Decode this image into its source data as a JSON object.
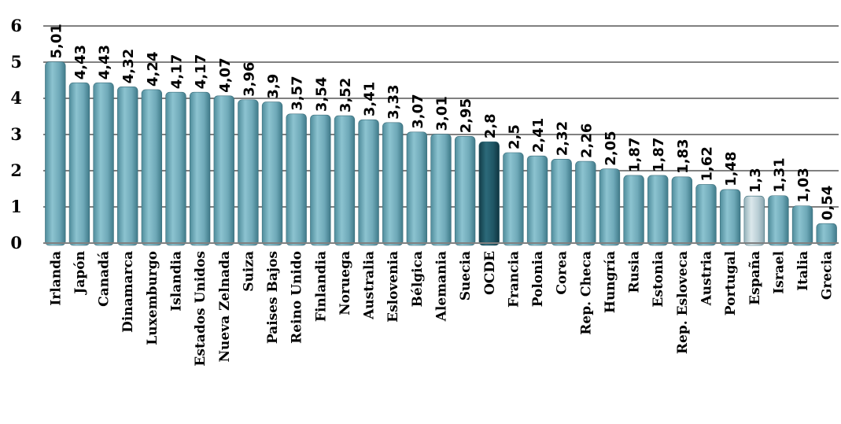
{
  "chart_data": {
    "type": "bar",
    "categories": [
      "Irlanda",
      "Japón",
      "Canadá",
      "Dinamarca",
      "Luxemburgo",
      "Islandia",
      "Estados Unidos",
      "Nueva Zelnada",
      "Suiza",
      "Paises Bajos",
      "Reino Unido",
      "Finlandia",
      "Noruega",
      "Australia",
      "Eslovenia",
      "Bélgica",
      "Alemania",
      "Suecia",
      "OCDE",
      "Francia",
      "Polonia",
      "Corea",
      "Rep. Checa",
      "Hungría",
      "Rusia",
      "Estonia",
      "Rep. Esloveca",
      "Austria",
      "Portugal",
      "España",
      "Israel",
      "Italia",
      "Grecia"
    ],
    "values": [
      5.01,
      4.43,
      4.43,
      4.32,
      4.24,
      4.17,
      4.17,
      4.07,
      3.96,
      3.9,
      3.57,
      3.54,
      3.52,
      3.41,
      3.33,
      3.07,
      3.01,
      2.95,
      2.8,
      2.5,
      2.41,
      2.32,
      2.26,
      2.05,
      1.87,
      1.87,
      1.83,
      1.62,
      1.48,
      1.3,
      1.31,
      1.03,
      0.54
    ],
    "value_labels": [
      "5,01",
      "4,43",
      "4,43",
      "4,32",
      "4,24",
      "4,17",
      "4,17",
      "4,07",
      "3,96",
      "3,9",
      "3,57",
      "3,54",
      "3,52",
      "3,41",
      "3,33",
      "3,07",
      "3,01",
      "2,95",
      "2,8",
      "2,5",
      "2,41",
      "2,32",
      "2,26",
      "2,05",
      "1,87",
      "1,87",
      "1,83",
      "1,62",
      "1,48",
      "1,3",
      "1,31",
      "1,03",
      "0,54"
    ],
    "title": "",
    "xlabel": "",
    "ylabel": "",
    "ylim": [
      0,
      6
    ],
    "yticks": [
      "0",
      "1",
      "2",
      "3",
      "4",
      "5",
      "6"
    ],
    "grid": true,
    "legend": "none",
    "colors": {
      "default": "#6fa9b8",
      "highlight": "#1f5665",
      "highlight_category": "OCDE",
      "spain": "#b8cdd4",
      "spain_category": "España",
      "grid": "#808080"
    }
  }
}
